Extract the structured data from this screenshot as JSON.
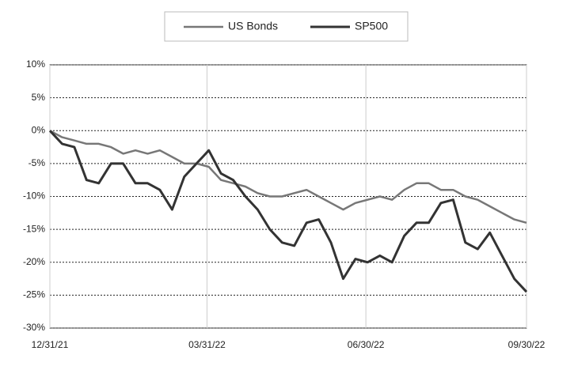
{
  "chart_data": {
    "type": "line",
    "x": [
      "12/31/21",
      "01/07/22",
      "01/14/22",
      "01/21/22",
      "01/28/22",
      "02/04/22",
      "02/11/22",
      "02/18/22",
      "02/25/22",
      "03/04/22",
      "03/11/22",
      "03/18/22",
      "03/25/22",
      "04/01/22",
      "04/08/22",
      "04/15/22",
      "04/22/22",
      "04/29/22",
      "05/06/22",
      "05/13/22",
      "05/20/22",
      "05/27/22",
      "06/03/22",
      "06/10/22",
      "06/17/22",
      "06/24/22",
      "07/01/22",
      "07/08/22",
      "07/15/22",
      "07/22/22",
      "07/29/22",
      "08/05/22",
      "08/12/22",
      "08/19/22",
      "08/26/22",
      "09/02/22",
      "09/09/22",
      "09/16/22",
      "09/23/22",
      "09/30/22"
    ],
    "series": [
      {
        "name": "US Bonds",
        "color": "#777777",
        "values": [
          0,
          -1,
          -1.5,
          -2,
          -2,
          -2.5,
          -3.5,
          -3,
          -3.5,
          -3,
          -4,
          -5,
          -5,
          -5.5,
          -7.5,
          -8,
          -8.5,
          -9.5,
          -10,
          -10,
          -9.5,
          -9,
          -10,
          -11,
          -12,
          -11,
          -10.5,
          -10,
          -10.5,
          -9,
          -8,
          -8,
          -9,
          -9,
          -10,
          -10.5,
          -11.5,
          -12.5,
          -13.5,
          -14
        ]
      },
      {
        "name": "SP500",
        "color": "#333333",
        "values": [
          0,
          -2,
          -2.5,
          -7.5,
          -8,
          -5,
          -5,
          -8,
          -8,
          -9,
          -12,
          -7,
          -5,
          -3,
          -6.5,
          -7.5,
          -10,
          -12,
          -15,
          -17,
          -17.5,
          -14,
          -13.5,
          -17,
          -22.5,
          -19.5,
          -20,
          -19,
          -20,
          -16,
          -14,
          -14,
          -11,
          -10.5,
          -17,
          -18,
          -15.5,
          -19,
          -22.5,
          -24.5
        ]
      }
    ],
    "xlim": [
      "12/31/21",
      "09/30/22"
    ],
    "xticks": [
      "12/31/21",
      "03/31/22",
      "06/30/22",
      "09/30/22"
    ],
    "ylim": [
      -30,
      10
    ],
    "yticks": [
      {
        "value": -30,
        "label": "-30%"
      },
      {
        "value": -25,
        "label": "-25%"
      },
      {
        "value": -20,
        "label": "-20%"
      },
      {
        "value": -15,
        "label": "-15%"
      },
      {
        "value": -10,
        "label": "-10%"
      },
      {
        "value": -5,
        "label": "-5%"
      },
      {
        "value": 0,
        "label": "0%"
      },
      {
        "value": 5,
        "label": "5%"
      },
      {
        "value": 10,
        "label": "10%"
      }
    ],
    "grid": true
  }
}
